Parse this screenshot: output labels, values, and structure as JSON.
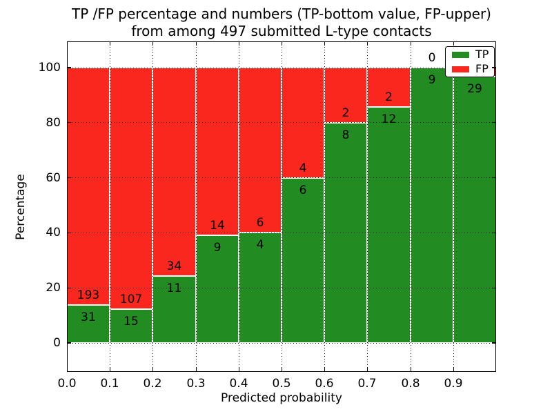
{
  "chart_data": {
    "type": "bar",
    "stacked": true,
    "title_lines": [
      "TP /FP percentage and numbers (TP-bottom value, FP-upper)",
      "from among 497 submitted L-type contacts"
    ],
    "xlabel": "Predicted probability",
    "ylabel": "Percentage",
    "x_tick_labels": [
      "0.0",
      "0.1",
      "0.2",
      "0.3",
      "0.4",
      "0.5",
      "0.6",
      "0.7",
      "0.8",
      "0.9"
    ],
    "y_tick_values": [
      0,
      20,
      40,
      60,
      80,
      100
    ],
    "xlim": [
      0.0,
      1.0
    ],
    "ylim_display": [
      -11,
      109
    ],
    "grid": "dotted",
    "bin_width": 0.1,
    "total_contacts": 497,
    "bins": [
      {
        "x_start": 0.0,
        "x_end": 0.1,
        "tp": 31,
        "fp": 193
      },
      {
        "x_start": 0.1,
        "x_end": 0.2,
        "tp": 15,
        "fp": 107
      },
      {
        "x_start": 0.2,
        "x_end": 0.3,
        "tp": 11,
        "fp": 34
      },
      {
        "x_start": 0.3,
        "x_end": 0.4,
        "tp": 9,
        "fp": 14
      },
      {
        "x_start": 0.4,
        "x_end": 0.5,
        "tp": 4,
        "fp": 6
      },
      {
        "x_start": 0.5,
        "x_end": 0.6,
        "tp": 6,
        "fp": 4
      },
      {
        "x_start": 0.6,
        "x_end": 0.7,
        "tp": 8,
        "fp": 2
      },
      {
        "x_start": 0.7,
        "x_end": 0.8,
        "tp": 12,
        "fp": 2
      },
      {
        "x_start": 0.8,
        "x_end": 0.9,
        "tp": 9,
        "fp": 0
      },
      {
        "x_start": 0.9,
        "x_end": 1.0,
        "tp": 29,
        "fp": 1,
        "fp_label_hidden_by_legend": true
      }
    ],
    "series": [
      {
        "name": "TP",
        "color": "#228b22"
      },
      {
        "name": "FP",
        "color": "#f9271d"
      }
    ],
    "legend": {
      "position": "upper right",
      "entries": [
        "TP",
        "FP"
      ]
    },
    "colors": {
      "bar_edge": "#ffffff",
      "grid": "#000000",
      "text": "#000000",
      "background": "#ffffff"
    }
  }
}
